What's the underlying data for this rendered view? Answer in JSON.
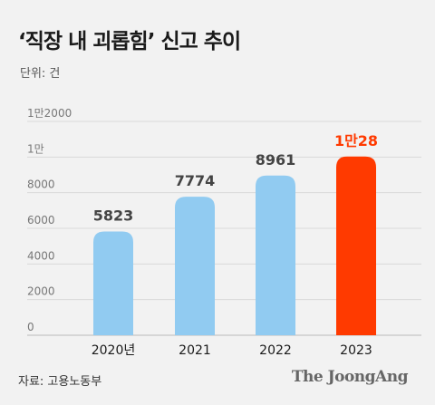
{
  "title": "‘직장 내 괴롭힘’ 신고 추이",
  "unit_label": "단위: 건",
  "source": "자료: 고용노동부",
  "brand": "The JoongAng",
  "colors": {
    "bar": "#91cbf1",
    "highlight_bar": "#ff3a00",
    "highlight_label": "#ff3a00",
    "grid": "#d9d9d9",
    "text": "#1a1a1a",
    "tick": "#777777"
  },
  "chart_data": {
    "type": "bar",
    "categories": [
      "2020년",
      "2021",
      "2022",
      "2023"
    ],
    "values": [
      5823,
      7774,
      8961,
      10028
    ],
    "data_labels": [
      "5823",
      "7774",
      "8961",
      "1만28"
    ],
    "highlight_index": 3,
    "ylim": [
      0,
      12000
    ],
    "yticks": [
      0,
      2000,
      4000,
      6000,
      8000,
      10000,
      12000
    ],
    "ytick_labels": [
      "0",
      "2000",
      "4000",
      "6000",
      "8000",
      "1만",
      "1만2000"
    ],
    "grid": true,
    "title": "‘직장 내 괴롭힘’ 신고 추이",
    "ylabel": "단위: 건"
  }
}
